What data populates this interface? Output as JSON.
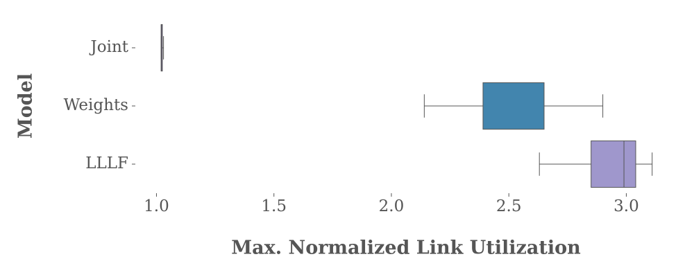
{
  "chart_data": {
    "type": "box",
    "xlabel": "Max. Normalized Link Utilization",
    "ylabel": "Model",
    "categories": [
      "Joint",
      "Weights",
      "LLLF"
    ],
    "boxes": [
      {
        "min": 1.02,
        "q1": 1.02,
        "median": 1.02,
        "q3": 1.025,
        "max": 1.03
      },
      {
        "min": 2.14,
        "q1": 2.39,
        "median": 2.65,
        "q3": 2.65,
        "max": 2.9
      },
      {
        "min": 2.63,
        "q1": 2.85,
        "median": 2.99,
        "q3": 3.04,
        "max": 3.11
      }
    ],
    "colors": [
      "#6a5f8a",
      "#4285ae",
      "#9f97cc"
    ],
    "xlim": [
      0.91,
      3.17
    ],
    "xticks": [
      {
        "value": 1,
        "label": "1.0"
      },
      {
        "value": 1.5,
        "label": "1.5"
      },
      {
        "value": 2,
        "label": "2.0"
      },
      {
        "value": 2.5,
        "label": "2.5"
      },
      {
        "value": 3,
        "label": "3.0"
      }
    ]
  }
}
